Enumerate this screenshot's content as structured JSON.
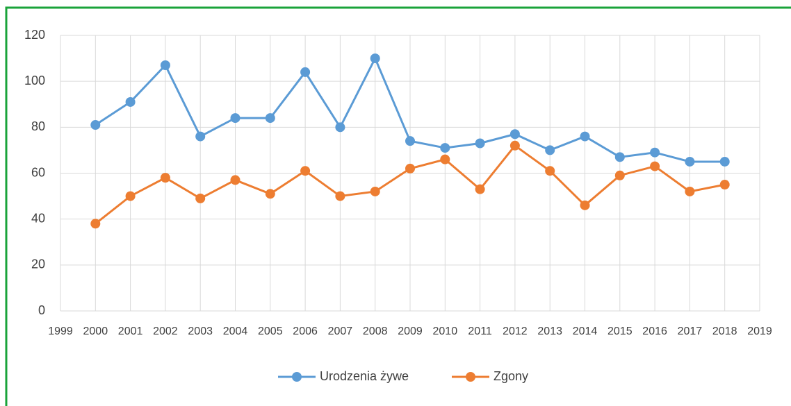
{
  "chart_data": {
    "type": "line",
    "x": [
      2000,
      2001,
      2002,
      2003,
      2004,
      2005,
      2006,
      2007,
      2008,
      2009,
      2010,
      2011,
      2012,
      2013,
      2014,
      2015,
      2016,
      2017,
      2018
    ],
    "series": [
      {
        "name": "Urodzenia żywe",
        "color": "#5b9bd5",
        "values": [
          81,
          91,
          107,
          76,
          84,
          84,
          104,
          80,
          110,
          74,
          71,
          73,
          77,
          70,
          76,
          67,
          69,
          65,
          65
        ]
      },
      {
        "name": "Zgony",
        "color": "#ed7d31",
        "values": [
          38,
          50,
          58,
          49,
          57,
          51,
          61,
          50,
          52,
          62,
          66,
          53,
          72,
          61,
          46,
          59,
          63,
          52,
          55
        ]
      }
    ],
    "xlim": [
      1999,
      2019
    ],
    "xticks": [
      1999,
      2000,
      2001,
      2002,
      2003,
      2004,
      2005,
      2006,
      2007,
      2008,
      2009,
      2010,
      2011,
      2012,
      2013,
      2014,
      2015,
      2016,
      2017,
      2018,
      2019
    ],
    "ylim": [
      0,
      120
    ],
    "yticks": [
      0,
      20,
      40,
      60,
      80,
      100,
      120
    ],
    "grid": true,
    "legend": "bottom"
  }
}
